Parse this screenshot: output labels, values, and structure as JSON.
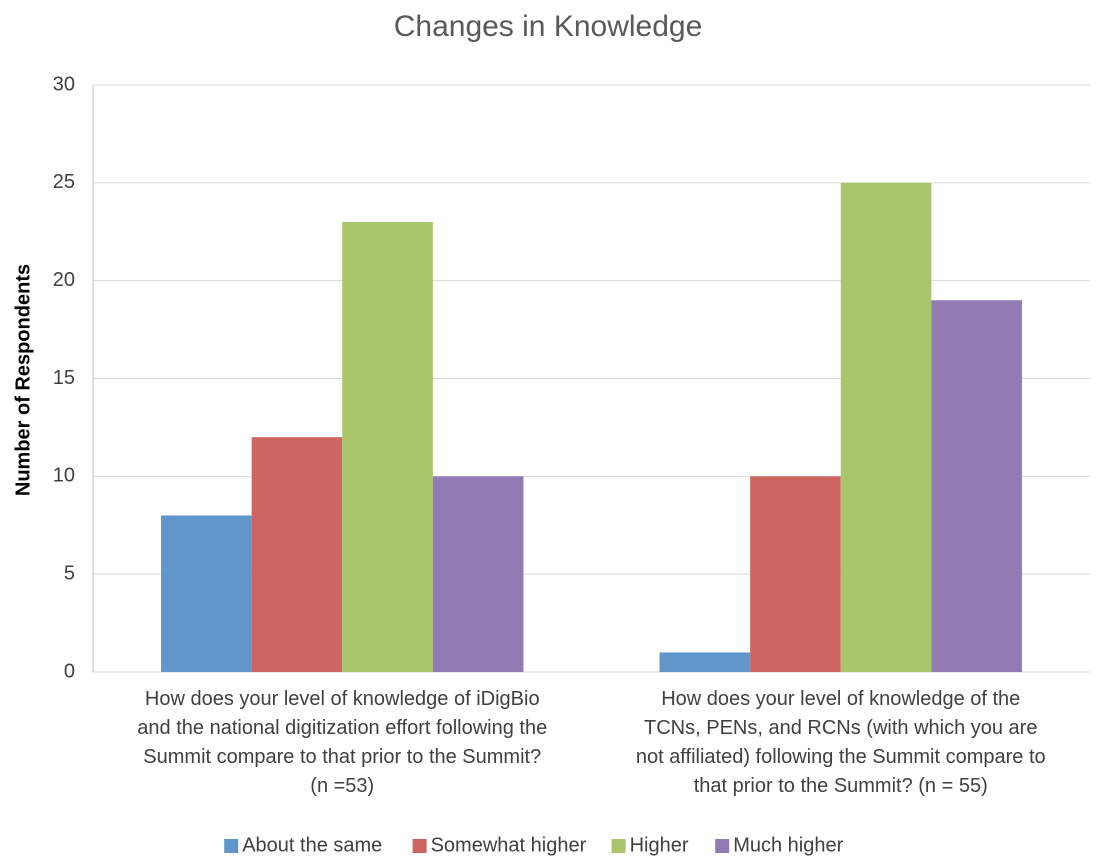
{
  "chart_data": {
    "type": "bar",
    "title": "Changes in Knowledge",
    "y_label": "Number of Respondents",
    "categories": [
      "How does your level of knowledge of  iDigBio\nand the national digitization effort following the\nSummit compare to that prior to the Summit?\n(n =53)",
      "How does your level of knowledge of the\nTCNs, PENs, and RCNs  (with which you are\nnot affiliated) following the Summit compare to\nthat prior to the Summit? (n = 55)"
    ],
    "series": [
      {
        "name": "About the same",
        "color": "#6096c9",
        "values": [
          8,
          1
        ]
      },
      {
        "name": "Somewhat higher",
        "color": "#cd6560",
        "values": [
          12,
          10
        ]
      },
      {
        "name": "Higher",
        "color": "#a9c56c",
        "values": [
          23,
          25
        ]
      },
      {
        "name": "Much higher",
        "color": "#927bb3",
        "values": [
          10,
          19
        ]
      }
    ],
    "ylim": [
      0,
      30
    ],
    "yticks": [
      0,
      5,
      10,
      15,
      20,
      25,
      30
    ],
    "grid": true,
    "legend": "bottom"
  }
}
